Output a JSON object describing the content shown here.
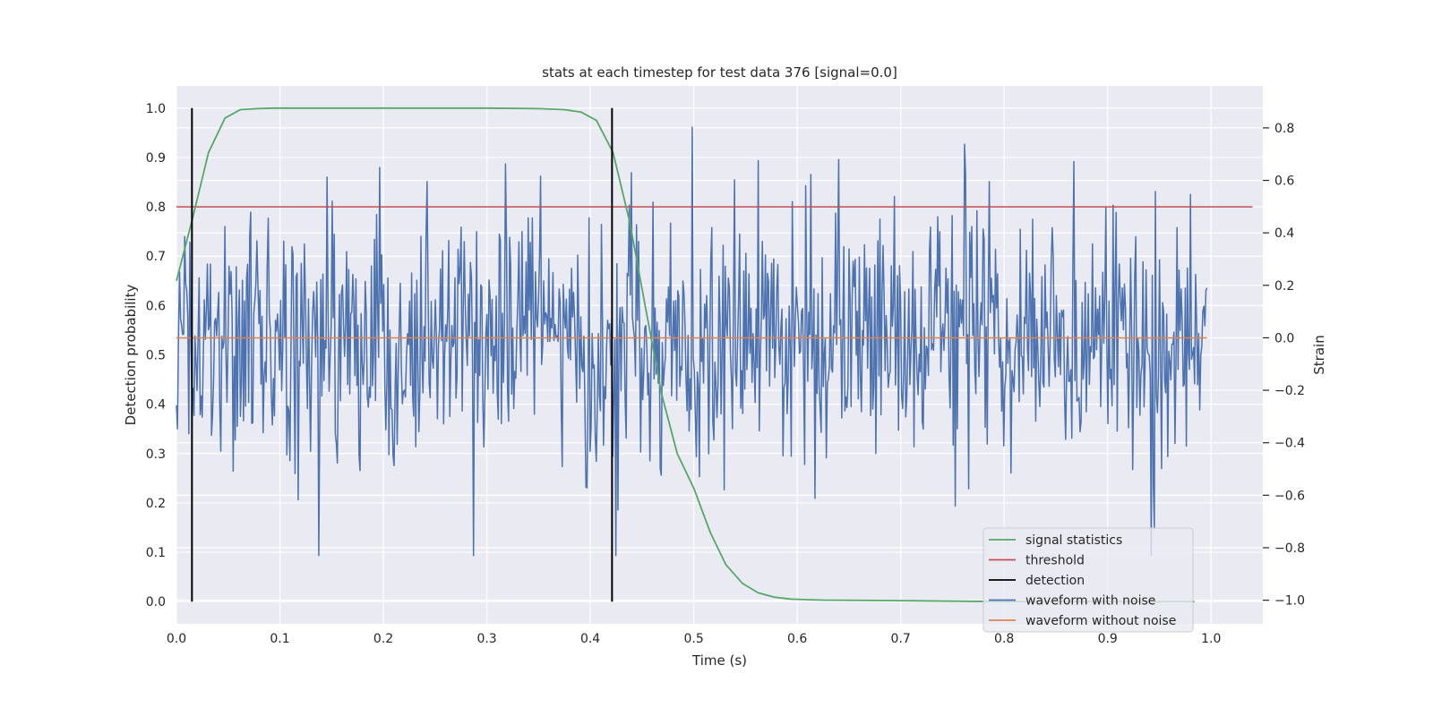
{
  "chart_data": {
    "type": "line",
    "title": "stats at each timestep for test data 376 [signal=0.0]",
    "xlabel": "Time (s)",
    "ylabel": "Detection probability",
    "ylabel_right": "Strain",
    "xlim": [
      0.0,
      1.05
    ],
    "ylim": [
      -0.045,
      1.045
    ],
    "ylim_right": [
      -1.09,
      0.96
    ],
    "x_ticks": [
      "0.0",
      "0.1",
      "0.2",
      "0.3",
      "0.4",
      "0.5",
      "0.6",
      "0.7",
      "0.8",
      "0.9",
      "1.0"
    ],
    "y_ticks": [
      "0.0",
      "0.1",
      "0.2",
      "0.3",
      "0.4",
      "0.5",
      "0.6",
      "0.7",
      "0.8",
      "0.9",
      "1.0"
    ],
    "y_right_ticks": [
      "−1.0",
      "−0.8",
      "−0.6",
      "−0.4",
      "−0.2",
      "0.0",
      "0.2",
      "0.4",
      "0.6",
      "0.8"
    ],
    "grid": true,
    "legend_position": "bottom-right",
    "colors": {
      "signal_statistics": "#55a868",
      "threshold": "#c44e52",
      "detection": "#000000",
      "waveform_with_noise": "#4c72b0",
      "waveform_without_noise": "#dd8452",
      "plot_background": "#eaeaf2",
      "grid": "#ffffff"
    },
    "series": [
      {
        "name": "signal statistics",
        "axis": "left",
        "x": [
          0.0,
          0.016,
          0.031,
          0.047,
          0.062,
          0.078,
          0.094,
          0.109,
          0.125,
          0.2,
          0.3,
          0.35,
          0.375,
          0.391,
          0.406,
          0.422,
          0.438,
          0.453,
          0.469,
          0.484,
          0.5,
          0.516,
          0.531,
          0.547,
          0.562,
          0.578,
          0.594,
          0.609,
          0.625,
          0.7,
          0.8,
          0.9,
          0.984
        ],
        "y": [
          0.65,
          0.78,
          0.91,
          0.98,
          0.997,
          0.999,
          1.0,
          1.0,
          1.0,
          1.0,
          1.0,
          0.999,
          0.997,
          0.992,
          0.975,
          0.91,
          0.77,
          0.6,
          0.42,
          0.3,
          0.23,
          0.14,
          0.075,
          0.037,
          0.018,
          0.009,
          0.005,
          0.004,
          0.003,
          0.002,
          0.0,
          0.0,
          0.0
        ]
      },
      {
        "name": "threshold",
        "axis": "left",
        "x": [
          0.0,
          1.04
        ],
        "y": [
          0.8,
          0.8
        ]
      },
      {
        "name": "detection",
        "axis": "left",
        "type": "vlines",
        "x": [
          0.015,
          0.421
        ],
        "y_range": [
          0.0,
          1.0
        ]
      },
      {
        "name": "waveform with noise",
        "axis": "right",
        "x_range": [
          0.0,
          0.996
        ],
        "n_points": 1000,
        "y_range": [
          -0.83,
          0.88
        ],
        "y_min": -0.83,
        "y_max": 0.88,
        "y_std": 0.25
      },
      {
        "name": "waveform without noise",
        "axis": "right",
        "x": [
          0.0,
          0.996
        ],
        "y": [
          0.0,
          0.0
        ]
      }
    ]
  }
}
